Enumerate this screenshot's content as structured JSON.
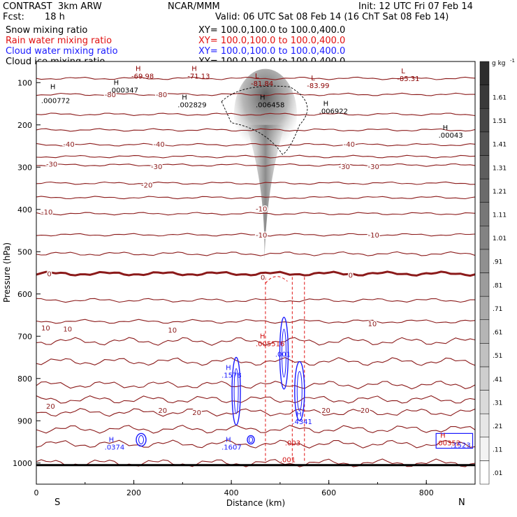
{
  "header": {
    "title_left": "CONTRAST  3km ARW",
    "center": "NCAR/MMM",
    "init": "Init: 12 UTC Fri 07 Feb 14",
    "fcst_label": "Fcst:",
    "fcst_value": "18 h",
    "valid": "Valid: 06 UTC Sat 08 Feb 14 (16 ChT Sat 08 Feb 14)"
  },
  "fields": [
    {
      "name": "Snow mixing ratio",
      "xy": "XY= 100.0,100.0 to 100.0,400.0",
      "color": "#000000"
    },
    {
      "name": "Rain water mixing ratio",
      "xy": "XY= 100.0,100.0 to 100.0,400.0",
      "color": "#e01010"
    },
    {
      "name": "Cloud water mixing ratio",
      "xy": "XY= 100.0,100.0 to 100.0,400.0",
      "color": "#1a1aff"
    },
    {
      "name": "Cloud ice mixing ratio",
      "xy": "XY= 100.0,100.0 to 100.0,400.0",
      "color": "#000000"
    }
  ],
  "chart_data": {
    "type": "contour",
    "xlabel": "Distance (km)",
    "ylabel": "Pressure (hPa)",
    "xlim": [
      0,
      900
    ],
    "ylim": [
      50,
      1050
    ],
    "x_ticks": [
      0,
      200,
      400,
      600,
      800
    ],
    "y_ticks": [
      100,
      200,
      300,
      400,
      500,
      600,
      700,
      800,
      900,
      1000
    ],
    "left_end_label": "S",
    "right_end_label": "N",
    "colorbar": {
      "units": "g kg",
      "units_exp": "-1",
      "labels": [
        ".01",
        ".11",
        ".21",
        ".31",
        ".41",
        ".51",
        ".61",
        ".71",
        ".81",
        ".91",
        "1.01",
        "1.11",
        "1.21",
        "1.31",
        "1.41",
        "1.51",
        "1.61"
      ]
    },
    "temperature_levels": [
      {
        "p": 90,
        "label": "-80"
      },
      {
        "p": 128,
        "label": "-80"
      },
      {
        "p": 175,
        "label": ""
      },
      {
        "p": 212,
        "label": ""
      },
      {
        "p": 247,
        "label": "-40"
      },
      {
        "p": 275,
        "label": ""
      },
      {
        "p": 295,
        "label": "-30"
      },
      {
        "p": 338,
        "label": "-20"
      },
      {
        "p": 372,
        "label": ""
      },
      {
        "p": 410,
        "label": "-10"
      },
      {
        "p": 460,
        "label": "-10"
      },
      {
        "p": 505,
        "label": ""
      },
      {
        "p": 552,
        "label": "0",
        "bold": true
      },
      {
        "p": 615,
        "label": ""
      },
      {
        "p": 665,
        "label": ""
      },
      {
        "p": 712,
        "label": "10"
      },
      {
        "p": 760,
        "label": ""
      },
      {
        "p": 815,
        "label": ""
      },
      {
        "p": 850,
        "label": ""
      },
      {
        "p": 880,
        "label": "20"
      },
      {
        "p": 920,
        "label": ""
      },
      {
        "p": 955,
        "label": ""
      },
      {
        "p": 1000,
        "label": ""
      }
    ],
    "temp_labels": [
      {
        "x": 140,
        "p": 128,
        "text": "-80"
      },
      {
        "x": 245,
        "p": 128,
        "text": "-80"
      },
      {
        "x": 55,
        "p": 245,
        "text": "-40"
      },
      {
        "x": 240,
        "p": 245,
        "text": "-40"
      },
      {
        "x": 630,
        "p": 245,
        "text": "-40"
      },
      {
        "x": 20,
        "p": 292,
        "text": "-30"
      },
      {
        "x": 235,
        "p": 298,
        "text": "-30"
      },
      {
        "x": 620,
        "p": 298,
        "text": "-30"
      },
      {
        "x": 680,
        "p": 298,
        "text": "-30"
      },
      {
        "x": 215,
        "p": 342,
        "text": "-20"
      },
      {
        "x": 10,
        "p": 405,
        "text": "-10"
      },
      {
        "x": 450,
        "p": 398,
        "text": "-10"
      },
      {
        "x": 450,
        "p": 460,
        "text": "-10"
      },
      {
        "x": 680,
        "p": 460,
        "text": "-10"
      },
      {
        "x": 22,
        "p": 552,
        "text": "0"
      },
      {
        "x": 460,
        "p": 560,
        "text": "0"
      },
      {
        "x": 640,
        "p": 555,
        "text": "0"
      },
      {
        "x": 10,
        "p": 680,
        "text": "10"
      },
      {
        "x": 55,
        "p": 682,
        "text": "10"
      },
      {
        "x": 270,
        "p": 685,
        "text": "10"
      },
      {
        "x": 680,
        "p": 670,
        "text": "10"
      },
      {
        "x": 20,
        "p": 865,
        "text": "20"
      },
      {
        "x": 250,
        "p": 875,
        "text": "20"
      },
      {
        "x": 320,
        "p": 880,
        "text": "20"
      },
      {
        "x": 585,
        "p": 875,
        "text": "20"
      },
      {
        "x": 665,
        "p": 875,
        "text": "20"
      }
    ],
    "extrema": [
      {
        "x": 215,
        "p": 72,
        "sym": "H",
        "val": "-69.98",
        "color": "#8b0000"
      },
      {
        "x": 330,
        "p": 72,
        "sym": "H",
        "val": "-71.13",
        "color": "#8b0000"
      },
      {
        "x": 460,
        "p": 90,
        "sym": "L",
        "val": "-81.84",
        "color": "#8b0000"
      },
      {
        "x": 575,
        "p": 95,
        "sym": "L",
        "val": "-83.99",
        "color": "#8b0000"
      },
      {
        "x": 760,
        "p": 78,
        "sym": "L",
        "val": "-85.31",
        "color": "#8b0000"
      },
      {
        "x": 40,
        "p": 115,
        "sym": "H",
        "val": "",
        "color": "#000000"
      },
      {
        "x": 170,
        "p": 105,
        "sym": "H",
        "val": ".000347",
        "color": "#000000"
      },
      {
        "x": 30,
        "p": 130,
        "sym": "",
        "val": ".000772",
        "color": "#000000"
      },
      {
        "x": 310,
        "p": 140,
        "sym": "H",
        "val": ".002829",
        "color": "#000000"
      },
      {
        "x": 470,
        "p": 140,
        "sym": "H",
        "val": ".006458",
        "color": "#000000"
      },
      {
        "x": 600,
        "p": 155,
        "sym": "H",
        "val": ".006922",
        "color": "#000000"
      },
      {
        "x": 845,
        "p": 212,
        "sym": "H",
        "val": ".00043",
        "color": "#000000"
      },
      {
        "x": 470,
        "p": 705,
        "sym": "H",
        "val": ".005516",
        "color": "#d01010"
      },
      {
        "x": 510,
        "p": 730,
        "sym": "",
        "val": ".001",
        "color": "#1a1aff"
      },
      {
        "x": 400,
        "p": 780,
        "sym": "H",
        "val": ".1578",
        "color": "#1a1aff"
      },
      {
        "x": 545,
        "p": 890,
        "sym": "H",
        "val": ".4341",
        "color": "#1a1aff"
      },
      {
        "x": 530,
        "p": 940,
        "sym": "",
        "val": ".003",
        "color": "#d01010"
      },
      {
        "x": 520,
        "p": 980,
        "sym": "",
        "val": ".001",
        "color": "#d01010"
      },
      {
        "x": 160,
        "p": 950,
        "sym": "H",
        "val": ".0374",
        "color": "#1a1aff"
      },
      {
        "x": 400,
        "p": 950,
        "sym": "H",
        "val": ".1607",
        "color": "#1a1aff"
      },
      {
        "x": 840,
        "p": 940,
        "sym": "H",
        "val": ".00352",
        "color": "#d01010"
      },
      {
        "x": 870,
        "p": 945,
        "sym": "",
        "val": ".1523",
        "color": "#1a1aff"
      }
    ],
    "rain_core_x": [
      470,
      525,
      550
    ],
    "cloud_water_cells": [
      {
        "x": 410,
        "p": 830,
        "w": 6,
        "h": 160
      },
      {
        "x": 508,
        "p": 740,
        "w": 6,
        "h": 170
      },
      {
        "x": 540,
        "p": 830,
        "w": 7,
        "h": 140
      },
      {
        "x": 215,
        "p": 945,
        "w": 7,
        "h": 30
      },
      {
        "x": 440,
        "p": 945,
        "w": 5,
        "h": 20
      }
    ]
  }
}
